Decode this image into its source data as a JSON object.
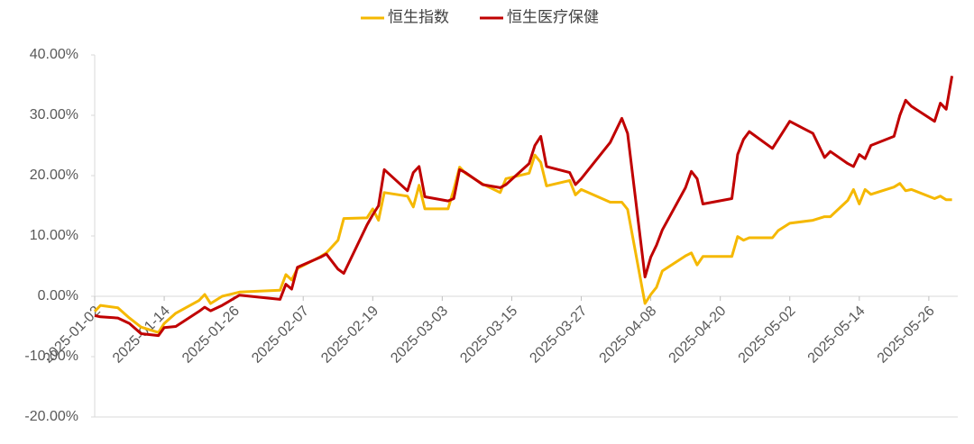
{
  "chart_data": {
    "type": "line",
    "x": [
      "2025-01-02",
      "2025-01-03",
      "2025-01-06",
      "2025-01-08",
      "2025-01-10",
      "2025-01-13",
      "2025-01-14",
      "2025-01-16",
      "2025-01-20",
      "2025-01-21",
      "2025-01-22",
      "2025-01-24",
      "2025-01-27",
      "2025-02-03",
      "2025-02-04",
      "2025-02-05",
      "2025-02-06",
      "2025-02-10",
      "2025-02-11",
      "2025-02-13",
      "2025-02-14",
      "2025-02-18",
      "2025-02-19",
      "2025-02-20",
      "2025-02-21",
      "2025-02-25",
      "2025-02-26",
      "2025-02-27",
      "2025-02-28",
      "2025-03-04",
      "2025-03-05",
      "2025-03-06",
      "2025-03-07",
      "2025-03-10",
      "2025-03-13",
      "2025-03-14",
      "2025-03-18",
      "2025-03-19",
      "2025-03-20",
      "2025-03-21",
      "2025-03-25",
      "2025-03-26",
      "2025-03-27",
      "2025-04-01",
      "2025-04-03",
      "2025-04-04",
      "2025-04-07",
      "2025-04-08",
      "2025-04-09",
      "2025-04-10",
      "2025-04-14",
      "2025-04-15",
      "2025-04-16",
      "2025-04-17",
      "2025-04-22",
      "2025-04-23",
      "2025-04-24",
      "2025-04-25",
      "2025-04-29",
      "2025-04-30",
      "2025-05-02",
      "2025-05-06",
      "2025-05-08",
      "2025-05-09",
      "2025-05-12",
      "2025-05-13",
      "2025-05-14",
      "2025-05-15",
      "2025-05-16",
      "2025-05-20",
      "2025-05-21",
      "2025-05-22",
      "2025-05-23",
      "2025-05-27",
      "2025-05-28",
      "2025-05-29",
      "2025-05-30"
    ],
    "series": [
      {
        "name": "恒生指数",
        "color": "#f5b800",
        "values": [
          -2.5,
          -1.5,
          -1.9,
          -3.6,
          -5.1,
          -6.0,
          -4.5,
          -2.8,
          -0.7,
          0.3,
          -1.2,
          0,
          0.7,
          1.0,
          3.6,
          2.7,
          4.6,
          6.6,
          7.2,
          9.3,
          12.9,
          13.0,
          14.5,
          12.6,
          17.2,
          16.6,
          14.8,
          18.4,
          14.5,
          14.5,
          17.7,
          21.4,
          20.4,
          18.6,
          17.2,
          19.5,
          20.4,
          23.4,
          22.2,
          18.3,
          19.2,
          16.8,
          17.7,
          15.6,
          15.6,
          14.4,
          -1.2,
          0.3,
          1.5,
          4.2,
          6.7,
          7.2,
          5.2,
          6.6,
          6.6,
          9.9,
          9.3,
          9.7,
          9.7,
          10.9,
          12.1,
          12.6,
          13.2,
          13.2,
          15.9,
          17.7,
          15.3,
          17.7,
          16.9,
          18.1,
          18.7,
          17.5,
          17.7,
          16.2,
          16.6,
          16.0,
          16.0
        ]
      },
      {
        "name": "恒生医疗保健",
        "color": "#c00000",
        "values": [
          -3.2,
          -3.4,
          -3.6,
          -4.5,
          -6.2,
          -6.5,
          -5.2,
          -5.0,
          -2.5,
          -1.8,
          -2.4,
          -1.5,
          0.2,
          -0.5,
          2.0,
          1.2,
          4.8,
          6.5,
          7.0,
          4.5,
          3.8,
          11.8,
          13.5,
          15.0,
          21.0,
          17.5,
          20.5,
          21.5,
          16.5,
          15.8,
          16.2,
          21.0,
          20.5,
          18.5,
          18.0,
          18.5,
          22.0,
          25.0,
          26.5,
          21.5,
          20.5,
          18.5,
          19.5,
          25.5,
          29.5,
          27.0,
          3.2,
          6.5,
          8.5,
          11.0,
          18.0,
          20.7,
          19.5,
          15.3,
          16.2,
          23.5,
          26.0,
          27.3,
          24.5,
          26.0,
          29.0,
          27.0,
          23.0,
          24.0,
          22.0,
          21.5,
          23.5,
          22.8,
          25.0,
          26.5,
          30.0,
          32.5,
          31.5,
          29.0,
          32.0,
          31.0,
          36.5
        ]
      }
    ],
    "xlim": [
      "2025-01-02",
      "2025-05-31"
    ],
    "xticks": [
      "2025-01-02",
      "2025-01-14",
      "2025-01-26",
      "2025-02-07",
      "2025-02-19",
      "2025-03-03",
      "2025-03-15",
      "2025-03-27",
      "2025-04-08",
      "2025-04-20",
      "2025-05-02",
      "2025-05-14",
      "2025-05-26"
    ],
    "ylim": [
      -20,
      40
    ],
    "yticks": [
      {
        "value": -20,
        "label": "-20.00%"
      },
      {
        "value": -10,
        "label": "-10.00%"
      },
      {
        "value": 0,
        "label": "0.00%"
      },
      {
        "value": 10,
        "label": "10.00%"
      },
      {
        "value": 20,
        "label": "20.00%"
      },
      {
        "value": 30,
        "label": "30.00%"
      },
      {
        "value": 40,
        "label": "40.00%"
      }
    ],
    "legend": "top"
  }
}
